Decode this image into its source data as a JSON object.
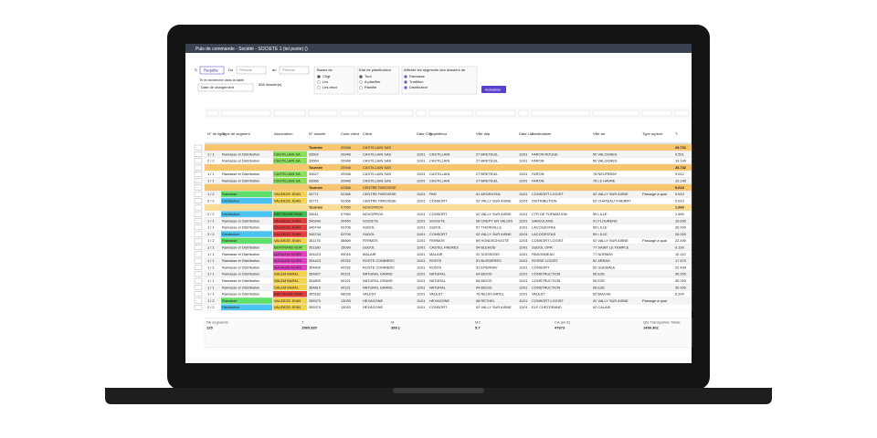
{
  "window": {
    "title": "Puls de commande - Société - SOCIETE 1 (tel poste) ()"
  },
  "filters": {
    "s": "S",
    "query_button": "Requête",
    "from": "Du",
    "from_value": "Période",
    "to": "au",
    "to_value": "Période",
    "sort_label": "Tri et recherche dans la table",
    "sort_value": "Date de chargement",
    "count": "558 dossier(s)",
    "base_title": "Bases de",
    "base_options": [
      "Chgt",
      "Livr",
      "Les deux"
    ],
    "state_title": "Etat de planification",
    "state_options": [
      "Tout",
      "A planifier",
      "Planifié"
    ],
    "segment_title": "Afficher les segments des dossiers de",
    "segment_options": [
      "Ramasse",
      "Tradition",
      "Distribution"
    ],
    "refresh_button": "Actualiser"
  },
  "table": {
    "columns": [
      "N° de ligne",
      "Type de segment",
      "Association",
      "N° dossier",
      "Code client",
      "Client",
      "Date Chg",
      "Expéditeur",
      "Ville dép",
      "Date Livr",
      "Destinataire",
      "Ville arr",
      "Type rupture",
      "T."
    ],
    "rows": [
      {
        "kind": "group",
        "cells": [
          "",
          "",
          "",
          "Tournée",
          "20948",
          "CASTILLAIN SAS",
          "",
          "",
          "",
          "",
          "",
          "",
          "",
          "28.731"
        ]
      },
      {
        "kind": "row",
        "assoc_color": "#8be05a",
        "cells": [
          "1 / 1",
          "Ramasse et Distribution",
          "CASTILLAIN SA",
          "33602",
          "20948",
          "CASTILLAIN SAS",
          "11/01",
          "CASTILLAIN",
          "27 BRETEUIL",
          "11/01",
          "FARON ROUGE",
          "50 VALOGNES",
          "",
          "9.591"
        ]
      },
      {
        "kind": "row",
        "assoc_color": "#8be05a",
        "cells": [
          "2 / 2",
          "Ramasse et Distribution",
          "CASTILLAIN SA",
          "33564",
          "20948",
          "CASTILLAIN SAS",
          "11/01",
          "CASTILLAIN",
          "27 BRETEUIL",
          "11/01",
          "FARON",
          "50 VALOGNES",
          "",
          "19.140"
        ]
      },
      {
        "kind": "group",
        "cells": [
          "",
          "",
          "",
          "Tournée",
          "20948",
          "CASTILLAIN SAS",
          "",
          "",
          "",
          "",
          "",
          "",
          "",
          "28.732"
        ]
      },
      {
        "kind": "row",
        "assoc_color": "#8be05a",
        "cells": [
          "1 / 1",
          "Ramasse et Distribution",
          "CASTILLAIN SA",
          "33627",
          "20948",
          "CASTILLAIN SAS",
          "11/01",
          "CASTILLAIN",
          "27 BRETEUIL",
          "11/01",
          "FARON",
          "76 NEUFBRAY",
          "",
          "9.612"
        ]
      },
      {
        "kind": "row",
        "assoc_color": "#8be05a",
        "cells": [
          "1 / 1",
          "Ramasse et Distribution",
          "CASTILLAIN SA",
          "33666",
          "20948",
          "CASTILLAIN SAS",
          "11/01",
          "CASTILLAIN",
          "27 BRETEUIL",
          "11/01",
          "FARON",
          "76 LE HAVRE",
          "",
          "19.140"
        ]
      },
      {
        "kind": "group",
        "cells": [
          "",
          "",
          "",
          "Tournée",
          "02366",
          "CENTRE PAROISSE",
          "",
          "",
          "",
          "",
          "",
          "",
          "",
          "9.610"
        ]
      },
      {
        "kind": "row",
        "seg_color": "#5fe06b",
        "assoc_color": "#f4d24a",
        "cells": [
          "1 / 2",
          "Ramasse",
          "VAUDEZE JEAN",
          "33771",
          "02366",
          "CENTRE PAROISSE",
          "11/01",
          "PAR",
          "61 ARGENTAN",
          "11/01",
          "CONSORT LOGIST",
          "02 VALLY SUR AISNE",
          "Passage à quai",
          "9.610"
        ]
      },
      {
        "kind": "row",
        "seg_color": "#4cc3ee",
        "assoc_color": "#f4d24a",
        "cells": [
          "2 / 2",
          "Distribution",
          "VAUDEZE JEAN",
          "33771",
          "02366",
          "CENTRE PAROISSE",
          "11/01",
          "CONSORT",
          "02 VALLY SUR AISNE",
          "12/01",
          "DISTRIBUTION",
          "02 CHATEAU THIERRY",
          "",
          "9.610"
        ]
      },
      {
        "kind": "group2",
        "cells": [
          "",
          "",
          "",
          "Tournée",
          "07950",
          "NOVOPROX",
          "",
          "",
          "",
          "",
          "",
          "",
          "",
          "1.690"
        ]
      },
      {
        "kind": "row",
        "seg_color": "#4cc3ee",
        "assoc_color": "#38c04a",
        "cells": [
          "2 / 2",
          "Distribution",
          "BRETAGNE RAM",
          "33611",
          "07950",
          "NOVOPROX",
          "11/01",
          "CONSORT",
          "02 VALLY SUR AISNE",
          "11/01",
          "CTR DE FORMATION",
          "59 LILLE",
          "",
          "1.690"
        ]
      },
      {
        "kind": "row",
        "assoc_color": "#e63b3b",
        "cells": [
          "1 / 1",
          "Ramasse et Distribution",
          "VAUDEZE JEAN",
          "346343",
          "20450",
          "SOCIETE",
          "11/01",
          "SOCIETE",
          "08 CREPY EN VALOIS",
          "11/01",
          "SAVEOLAND",
          "01 FLOURENS",
          "",
          "19.690"
        ]
      },
      {
        "kind": "row",
        "assoc_color": "#e63b3b",
        "cells": [
          "1 / 1",
          "Ramasse et Distribution",
          "VAUDEZE JEAN",
          "346744",
          "03706",
          "SUDOL",
          "11/01",
          "SUDOL",
          "57 THIONVILLE",
          "11/01",
          "LACOGESTAS",
          "59 LILLE",
          "",
          "26.000"
        ]
      },
      {
        "kind": "row",
        "seg_color": "#4cc3ee",
        "assoc_color": "#e63b3b",
        "cells": [
          "2 / 2",
          "Distribution",
          "VAUDEZE JEAN",
          "346744",
          "03706",
          "SUDOL",
          "11/01",
          "CONSORT",
          "02 VALLY SUR AISNE",
          "12/01",
          "LACOGESTAS",
          "59 LILLE",
          "",
          "26.000"
        ]
      },
      {
        "kind": "row",
        "seg_color": "#5fe06b",
        "assoc_color": "#f4d24a",
        "cells": [
          "1 / 2",
          "Ramasse",
          "VAUDEZE JEAN",
          "351176",
          "08869",
          "FERMOS",
          "11/01",
          "FERMOS",
          "59 HONDSCHOOTE",
          "12/01",
          "CONSORT LOGIST",
          "02 VALLY SUR AISNE",
          "Passage à quai",
          "22.490"
        ]
      },
      {
        "kind": "row",
        "assoc_color": "#8be05a",
        "cells": [
          "1 / 1",
          "Ramasse et Distribution",
          "BERTRAND NDR",
          "351180",
          "15099",
          "SUDOL",
          "11/01",
          "CASTEL FRERES",
          "54 BLENOD",
          "11/01",
          "SUDOL OPR",
          "77 SAINT LE TEMPLE",
          "",
          "9.190"
        ]
      },
      {
        "kind": "row",
        "assoc_color": "#e040c0",
        "cells": [
          "1 / 1",
          "Ramasse et Distribution",
          "MAGAZIN NORD",
          "354423",
          "09016",
          "MALAIR",
          "11/01",
          "MALAIR",
          "02 SOISSONS",
          "11/01",
          "PAVIONNEAU",
          "77 NORMAY",
          "",
          "10.110"
        ]
      },
      {
        "kind": "row",
        "assoc_color": "#e040c0",
        "cells": [
          "1 / 1",
          "Ramasse et Distribution",
          "MAGAZIN NORD",
          "354423",
          "09762",
          "ROSTE COMMERC",
          "11/01",
          "ROSTE",
          "51 BUSSIÈRES",
          "11/01",
          "ROSSE LOGIST",
          "62 ARRAS",
          "",
          "17.470"
        ]
      },
      {
        "kind": "row",
        "assoc_color": "#e040c0",
        "cells": [
          "1 / 1",
          "Ramasse et Distribution",
          "MAGAZIN NORD",
          "354400",
          "09762",
          "ROSTE COMMERC",
          "11/01",
          "ROSTE",
          "51 EPERNAY",
          "11/01",
          "CONSORT",
          "62 GUEMALE",
          "",
          "22.490"
        ]
      },
      {
        "kind": "row",
        "assoc_color": "#f4d24a",
        "cells": [
          "1 / 1",
          "Ramasse et Distribution",
          "SALEM BARAL",
          "354807",
          "00221",
          "NATURAL GRANS",
          "11/01",
          "NATURAL",
          "64 BIDOS",
          "11/01",
          "CONSTRUCTION",
          "06 EZE",
          "",
          "30.000"
        ]
      },
      {
        "kind": "row",
        "assoc_color": "#f4d24a",
        "cells": [
          "1 / 1",
          "Ramasse et Distribution",
          "SALEM BARAL",
          "354809",
          "00221",
          "NATURAL GRANS",
          "11/01",
          "NATURAL",
          "64 BIDOS",
          "11/01",
          "CONSTRUCTION",
          "06 EZE",
          "",
          "30.000"
        ]
      },
      {
        "kind": "row",
        "assoc_color": "#f4d24a",
        "cells": [
          "1 / 1",
          "Ramasse et Distribution",
          "SALEM BARAL",
          "354810",
          "00221",
          "NATURAL GRANS",
          "11/01",
          "NATURAL",
          "64 BIDOS",
          "11/01",
          "CONSTRUCTION",
          "06 EZE",
          "",
          "30.000"
        ]
      },
      {
        "kind": "row",
        "assoc_color": "#e63b3b",
        "cells": [
          "1 / 1",
          "Ramasse et Distribution",
          "BRETAGNE RAM",
          "355182",
          "08026",
          "VALEST",
          "11/01",
          "VALEST",
          "76 NEUFCHATEL",
          "11/01",
          "VALEST",
          "62 BIACHE",
          "",
          "6.200"
        ]
      },
      {
        "kind": "row",
        "seg_color": "#5fe06b",
        "assoc_color": "#f4d24a",
        "cells": [
          "1 / 2",
          "Ramasse",
          "VAUDEZE JEAN",
          "355370",
          "13033",
          "HEXAGONE",
          "11/01",
          "HEXAGONE",
          "08 RETHEL",
          "11/01",
          "CONSORT LOGIST",
          "02 VALLY SUR AISNE",
          "Passage à quai",
          ""
        ]
      },
      {
        "kind": "row",
        "seg_color": "#4cc3ee",
        "assoc_color": "#f4d24a",
        "cells": [
          "2 / 2",
          "Distribution",
          "VAUDEZE JEAN",
          "355370",
          "13033",
          "HEXAGONE",
          "11/01",
          "CONSORT",
          "02 VALLY SUR AISNE",
          "12/01",
          "ELF CHEZORAND",
          "62 CALAIS",
          "",
          ""
        ]
      }
    ]
  },
  "summary": {
    "labels": [
      "Nb segments",
      "T",
      "M",
      "M3",
      "CA (en €)",
      "Qté Transportée Totale"
    ],
    "values": [
      "125",
      "1565.335",
      "399.1",
      "5.7",
      "47673",
      "1499.302"
    ]
  }
}
